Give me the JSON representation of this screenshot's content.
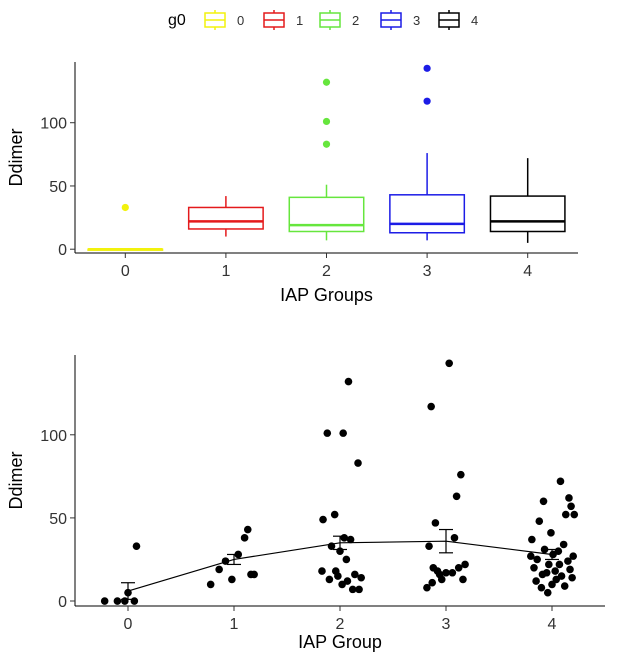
{
  "chart_data": [
    {
      "type": "box",
      "xlabel": "IAP Groups",
      "ylabel": "Ddimer",
      "yticks": [
        0,
        50,
        100
      ],
      "ylim": [
        -3,
        148
      ],
      "legend": {
        "title": "g0",
        "position": "top",
        "entries": [
          "0",
          "1",
          "2",
          "3",
          "4"
        ]
      },
      "groups": [
        {
          "name": "0",
          "color": "#f2f20d",
          "q1": 0,
          "median": 0,
          "q3": 0,
          "whisker_low": 0,
          "whisker_high": 0,
          "outliers": [
            33
          ]
        },
        {
          "name": "1",
          "color": "#e41a1c",
          "q1": 16,
          "median": 22,
          "q3": 33,
          "whisker_low": 10,
          "whisker_high": 42,
          "outliers": []
        },
        {
          "name": "2",
          "color": "#66e63d",
          "q1": 14,
          "median": 19,
          "q3": 41,
          "whisker_low": 7,
          "whisker_high": 51,
          "outliers": [
            83,
            101,
            132
          ]
        },
        {
          "name": "3",
          "color": "#1c1ce6",
          "q1": 13,
          "median": 20,
          "q3": 43,
          "whisker_low": 7,
          "whisker_high": 76,
          "outliers": [
            117,
            143
          ]
        },
        {
          "name": "4",
          "color": "#000000",
          "q1": 14,
          "median": 22,
          "q3": 42,
          "whisker_low": 5,
          "whisker_high": 72,
          "outliers": []
        }
      ]
    },
    {
      "type": "scatter",
      "xlabel": "IAP Group",
      "ylabel": "Ddimer",
      "categories": [
        "0",
        "1",
        "2",
        "3",
        "4"
      ],
      "yticks": [
        0,
        50,
        100
      ],
      "ylim": [
        -3,
        148
      ],
      "mean_line": {
        "means": [
          6,
          25,
          35,
          36,
          28
        ],
        "se": [
          5,
          3,
          4,
          7,
          3
        ]
      },
      "points": [
        {
          "x": -0.22,
          "y": 0
        },
        {
          "x": -0.1,
          "y": 0
        },
        {
          "x": -0.03,
          "y": 0
        },
        {
          "x": 0.06,
          "y": 0
        },
        {
          "x": 0.0,
          "y": 5
        },
        {
          "x": 0.08,
          "y": 33
        },
        {
          "x": 0.78,
          "y": 10
        },
        {
          "x": 0.86,
          "y": 19
        },
        {
          "x": 0.92,
          "y": 24
        },
        {
          "x": 0.98,
          "y": 13
        },
        {
          "x": 1.04,
          "y": 28
        },
        {
          "x": 1.1,
          "y": 38
        },
        {
          "x": 1.13,
          "y": 43
        },
        {
          "x": 1.16,
          "y": 16
        },
        {
          "x": 1.19,
          "y": 16
        },
        {
          "x": 1.83,
          "y": 18
        },
        {
          "x": 1.84,
          "y": 49
        },
        {
          "x": 1.88,
          "y": 101
        },
        {
          "x": 1.9,
          "y": 13
        },
        {
          "x": 1.92,
          "y": 33
        },
        {
          "x": 1.95,
          "y": 52
        },
        {
          "x": 1.96,
          "y": 18
        },
        {
          "x": 1.98,
          "y": 15
        },
        {
          "x": 2.0,
          "y": 30
        },
        {
          "x": 2.02,
          "y": 10
        },
        {
          "x": 2.03,
          "y": 101
        },
        {
          "x": 2.04,
          "y": 38
        },
        {
          "x": 2.06,
          "y": 25
        },
        {
          "x": 2.07,
          "y": 12
        },
        {
          "x": 2.08,
          "y": 132
        },
        {
          "x": 2.1,
          "y": 37
        },
        {
          "x": 2.12,
          "y": 7
        },
        {
          "x": 2.14,
          "y": 16
        },
        {
          "x": 2.17,
          "y": 83
        },
        {
          "x": 2.18,
          "y": 7
        },
        {
          "x": 2.2,
          "y": 14
        },
        {
          "x": 2.82,
          "y": 8
        },
        {
          "x": 2.84,
          "y": 33
        },
        {
          "x": 2.86,
          "y": 117
        },
        {
          "x": 2.87,
          "y": 11
        },
        {
          "x": 2.88,
          "y": 20
        },
        {
          "x": 2.9,
          "y": 47
        },
        {
          "x": 2.92,
          "y": 18
        },
        {
          "x": 2.94,
          "y": 16
        },
        {
          "x": 2.96,
          "y": 13
        },
        {
          "x": 3.0,
          "y": 17
        },
        {
          "x": 3.03,
          "y": 143
        },
        {
          "x": 3.06,
          "y": 17
        },
        {
          "x": 3.08,
          "y": 38
        },
        {
          "x": 3.1,
          "y": 63
        },
        {
          "x": 3.12,
          "y": 20
        },
        {
          "x": 3.14,
          "y": 76
        },
        {
          "x": 3.16,
          "y": 13
        },
        {
          "x": 3.18,
          "y": 22
        },
        {
          "x": 3.8,
          "y": 27
        },
        {
          "x": 3.81,
          "y": 37
        },
        {
          "x": 3.83,
          "y": 20
        },
        {
          "x": 3.85,
          "y": 12
        },
        {
          "x": 3.86,
          "y": 25
        },
        {
          "x": 3.88,
          "y": 48
        },
        {
          "x": 3.9,
          "y": 8
        },
        {
          "x": 3.91,
          "y": 16
        },
        {
          "x": 3.92,
          "y": 60
        },
        {
          "x": 3.93,
          "y": 31
        },
        {
          "x": 3.95,
          "y": 17
        },
        {
          "x": 3.96,
          "y": 5
        },
        {
          "x": 3.97,
          "y": 22
        },
        {
          "x": 3.99,
          "y": 41
        },
        {
          "x": 4.0,
          "y": 10
        },
        {
          "x": 4.01,
          "y": 28
        },
        {
          "x": 4.03,
          "y": 18
        },
        {
          "x": 4.04,
          "y": 13
        },
        {
          "x": 4.06,
          "y": 30
        },
        {
          "x": 4.07,
          "y": 22
        },
        {
          "x": 4.08,
          "y": 72
        },
        {
          "x": 4.09,
          "y": 15
        },
        {
          "x": 4.11,
          "y": 34
        },
        {
          "x": 4.12,
          "y": 9
        },
        {
          "x": 4.13,
          "y": 52
        },
        {
          "x": 4.15,
          "y": 24
        },
        {
          "x": 4.16,
          "y": 62
        },
        {
          "x": 4.17,
          "y": 19
        },
        {
          "x": 4.18,
          "y": 57
        },
        {
          "x": 4.19,
          "y": 14
        },
        {
          "x": 4.2,
          "y": 27
        },
        {
          "x": 4.21,
          "y": 52
        }
      ]
    }
  ]
}
